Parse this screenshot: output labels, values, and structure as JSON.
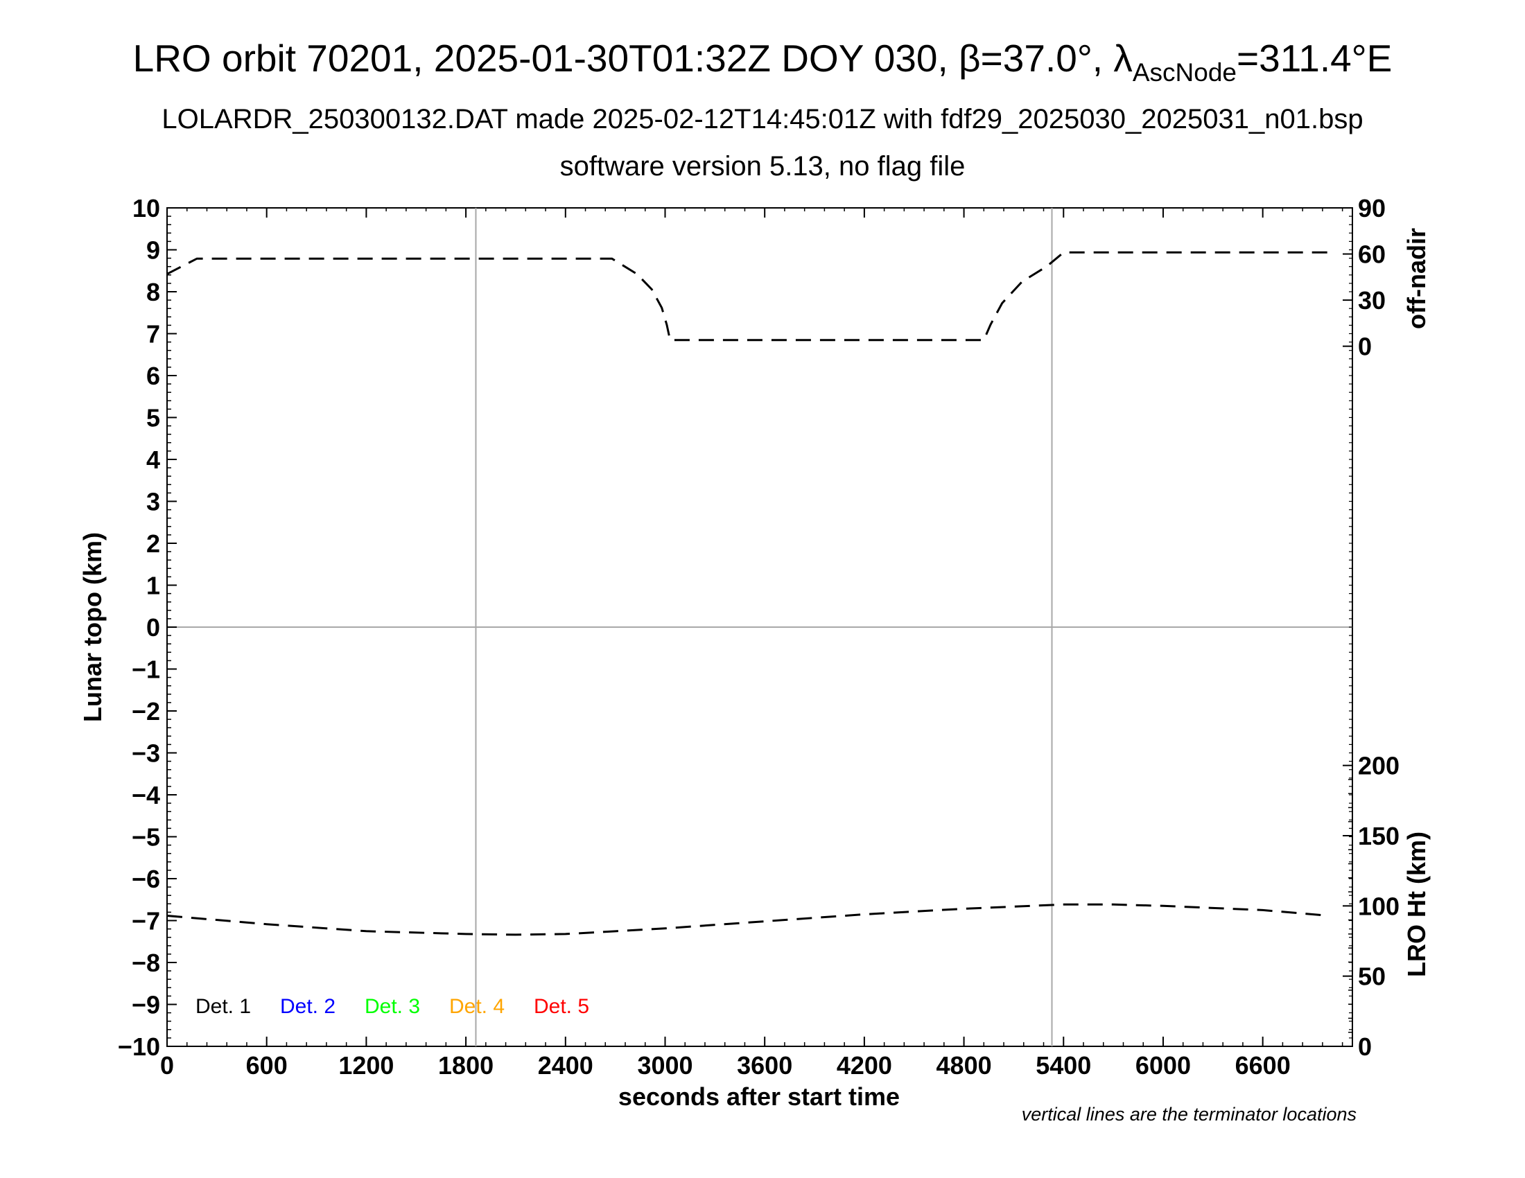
{
  "header": {
    "title_prefix": "LRO orbit 70201, 2025-01-30T01:32Z DOY 030, β=37.0°, λ",
    "title_sub": "AscNode",
    "title_suffix": "=311.4°E",
    "subtitle": "LOLARDR_250300132.DAT made 2025-02-12T14:45:01Z with fdf29_2025030_2025031_n01.bsp",
    "subtitle2": "software version 5.13, no flag file"
  },
  "footnote": "vertical lines are the terminator locations",
  "chart_data": {
    "type": "line",
    "xlabel": "seconds after start time",
    "ylabel": "Lunar topo (km)",
    "xlim": [
      0,
      7140
    ],
    "ylim": [
      -10,
      10
    ],
    "x_ticks": [
      0,
      600,
      1200,
      1800,
      2400,
      3000,
      3600,
      4200,
      4800,
      5400,
      6000,
      6600
    ],
    "y_ticks": [
      -10,
      -9,
      -8,
      -7,
      -6,
      -5,
      -4,
      -3,
      -2,
      -1,
      0,
      1,
      2,
      3,
      4,
      5,
      6,
      7,
      8,
      9,
      10
    ],
    "grid": "zero-line and terminator lines only",
    "terminators": [
      1860,
      5330
    ],
    "right_axes": [
      {
        "label": "off-nadir",
        "ticks": [
          0,
          30,
          60,
          90
        ],
        "range_deg": [
          0,
          90
        ]
      },
      {
        "label": "LRO Ht (km)",
        "ticks": [
          0,
          50,
          100,
          150,
          200
        ],
        "range_km": [
          0,
          200
        ]
      }
    ],
    "legend": {
      "position": "bottom-left",
      "entries": [
        {
          "name": "Det. 1",
          "color": "#000000"
        },
        {
          "name": "Det. 2",
          "color": "#0000ff"
        },
        {
          "name": "Det. 3",
          "color": "#00ff00"
        },
        {
          "name": "Det. 4",
          "color": "#ffa500"
        },
        {
          "name": "Det. 5",
          "color": "#ff0000"
        }
      ]
    },
    "series": [
      {
        "axis": "off-nadir",
        "style": "dashed",
        "x": [
          0,
          180,
          2680,
          2830,
          2920,
          2980,
          3010,
          3030,
          4920,
          4960,
          5030,
          5150,
          5300,
          5400,
          7000
        ],
        "y": [
          47,
          57,
          57,
          47,
          37,
          25,
          14,
          4,
          4,
          14,
          28,
          42,
          52,
          61,
          61
        ]
      },
      {
        "axis": "LRO Ht (km)",
        "style": "dashed",
        "x": [
          0,
          600,
          1200,
          1800,
          2100,
          2400,
          3000,
          3600,
          4200,
          4800,
          5400,
          5700,
          6000,
          6600,
          7000
        ],
        "y": [
          93,
          87,
          82,
          80,
          79.5,
          80,
          84,
          89,
          94,
          98,
          101,
          101,
          100,
          97,
          93
        ]
      }
    ]
  }
}
